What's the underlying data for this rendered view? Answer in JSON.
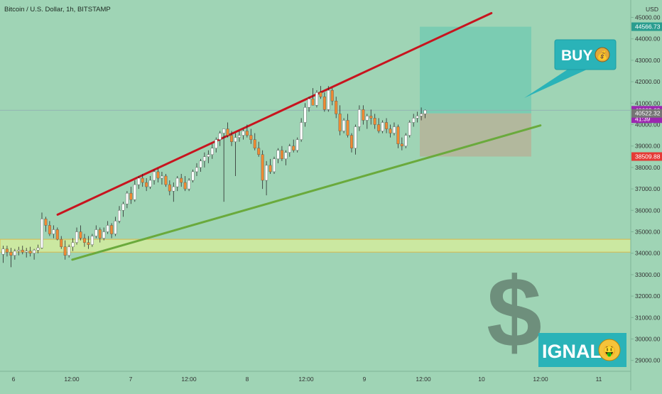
{
  "header": {
    "title": "Bitcoin / U.S. Dollar, 1h, BITSTAMP"
  },
  "colors": {
    "background": "#9fd4b5",
    "bull_candle": "#ffffff",
    "bear_candle": "#f08a32",
    "wick": "#2a2a2a",
    "resistance_line": "#c8141e",
    "support_line": "#6aaa3c",
    "support_zone": "#d3ec9e",
    "target_zone": "#6fcab2",
    "stop_zone": "#b4b59a",
    "buy_callout": "#2ab3b8",
    "dollar_sign": "#6e8f7c"
  },
  "price_axis": {
    "unit_label": "USD",
    "ticks": [
      "45000.00",
      "44000.00",
      "43000.00",
      "42000.00",
      "41000.00",
      "40000.00",
      "39000.00",
      "38000.00",
      "37000.00",
      "36000.00",
      "35000.00",
      "34000.00",
      "33000.00",
      "32000.00",
      "31000.00",
      "30000.00",
      "29000.00"
    ],
    "labels": [
      {
        "id": "target",
        "text": "44566.73",
        "color": "#2a9d8f"
      },
      {
        "id": "last",
        "text": "40669.69",
        "color": "#9c27b0"
      },
      {
        "id": "countdown",
        "text": "41:39",
        "color": "#9c27b0"
      },
      {
        "id": "entry",
        "text": "40522.32",
        "color": "#757575"
      },
      {
        "id": "stop",
        "text": "38509.88",
        "color": "#e53935"
      }
    ]
  },
  "time_axis": {
    "ticks": [
      "6",
      "12:00",
      "7",
      "12:00",
      "8",
      "12:00",
      "9",
      "12:00",
      "10",
      "12:00",
      "11"
    ]
  },
  "annotations": {
    "buy_label": "BUY",
    "buy_emoji": "💰",
    "dollar_sign": "$",
    "signal_text": "IGNAL",
    "signal_emoji": "🤑"
  },
  "chart_data": {
    "type": "candlestick",
    "symbol": "Bitcoin / U.S. Dollar",
    "timeframe": "1h",
    "exchange": "BITSTAMP",
    "ylim": [
      28400,
      45800
    ],
    "x_tick_labels": [
      "6",
      "12:00",
      "7",
      "12:00",
      "8",
      "12:00",
      "9",
      "12:00",
      "10",
      "12:00",
      "11"
    ],
    "candles_ohlc": [
      [
        33950,
        34350,
        33550,
        34200
      ],
      [
        34200,
        34350,
        33850,
        34050
      ],
      [
        34050,
        34250,
        33350,
        33900
      ],
      [
        33900,
        34200,
        33700,
        34100
      ],
      [
        34100,
        34300,
        33900,
        34150
      ],
      [
        34150,
        34350,
        33950,
        34050
      ],
      [
        34050,
        34250,
        33800,
        34100
      ],
      [
        34100,
        34300,
        33850,
        34000
      ],
      [
        34000,
        34200,
        33700,
        34150
      ],
      [
        34150,
        34400,
        34000,
        34250
      ],
      [
        34250,
        35900,
        34200,
        35600
      ],
      [
        35600,
        35700,
        35000,
        35300
      ],
      [
        35300,
        35500,
        34800,
        34900
      ],
      [
        34900,
        35300,
        34700,
        35100
      ],
      [
        35100,
        35200,
        34600,
        34650
      ],
      [
        34650,
        34800,
        34200,
        34300
      ],
      [
        34300,
        34600,
        33700,
        33900
      ],
      [
        33900,
        34400,
        33800,
        34300
      ],
      [
        34300,
        34700,
        34100,
        34500
      ],
      [
        34500,
        35200,
        34400,
        35000
      ],
      [
        35000,
        35300,
        34600,
        34700
      ],
      [
        34700,
        34900,
        34300,
        34500
      ],
      [
        34500,
        34800,
        34200,
        34400
      ],
      [
        34400,
        34900,
        34300,
        34800
      ],
      [
        34800,
        35300,
        34700,
        35100
      ],
      [
        35100,
        35200,
        34500,
        34700
      ],
      [
        34700,
        35200,
        34600,
        35000
      ],
      [
        35000,
        35500,
        34900,
        35300
      ],
      [
        35300,
        35400,
        34700,
        34900
      ],
      [
        34900,
        35700,
        34800,
        35500
      ],
      [
        35500,
        36200,
        35400,
        36000
      ],
      [
        36000,
        36400,
        35700,
        36300
      ],
      [
        36300,
        36900,
        36100,
        36800
      ],
      [
        36800,
        37100,
        36300,
        36500
      ],
      [
        36500,
        37400,
        36400,
        37200
      ],
      [
        37200,
        37600,
        37000,
        37500
      ],
      [
        37500,
        37700,
        37100,
        37300
      ],
      [
        37300,
        37500,
        36900,
        37100
      ],
      [
        37100,
        37600,
        37000,
        37400
      ],
      [
        37400,
        37900,
        37200,
        37800
      ],
      [
        37800,
        37950,
        37300,
        37500
      ],
      [
        37500,
        37800,
        37200,
        37600
      ],
      [
        37600,
        37700,
        37100,
        37200
      ],
      [
        37200,
        37400,
        36700,
        36900
      ],
      [
        36900,
        37300,
        36400,
        37100
      ],
      [
        37100,
        37600,
        36900,
        37500
      ],
      [
        37500,
        37700,
        37100,
        37300
      ],
      [
        37300,
        37600,
        36900,
        37000
      ],
      [
        37000,
        37500,
        36900,
        37400
      ],
      [
        37400,
        37900,
        37300,
        37800
      ],
      [
        37800,
        38200,
        37600,
        38000
      ],
      [
        38000,
        38400,
        37800,
        38300
      ],
      [
        38300,
        38700,
        38000,
        38500
      ],
      [
        38500,
        38800,
        38200,
        38600
      ],
      [
        38600,
        39100,
        38400,
        38900
      ],
      [
        38900,
        39400,
        38700,
        39300
      ],
      [
        39300,
        39700,
        39000,
        39600
      ],
      [
        39600,
        39700,
        36400,
        39800
      ],
      [
        39800,
        40100,
        39400,
        39500
      ],
      [
        39500,
        39700,
        39000,
        39200
      ],
      [
        39200,
        39600,
        37600,
        39400
      ],
      [
        39400,
        39700,
        39200,
        39500
      ],
      [
        39500,
        39800,
        39300,
        39700
      ],
      [
        39700,
        40000,
        39400,
        39500
      ],
      [
        39500,
        39800,
        39100,
        39300
      ],
      [
        39300,
        39600,
        38800,
        38900
      ],
      [
        38900,
        39200,
        38500,
        38600
      ],
      [
        38600,
        38800,
        37000,
        37400
      ],
      [
        37400,
        38300,
        36700,
        38100
      ],
      [
        38100,
        38400,
        37700,
        37800
      ],
      [
        37800,
        38500,
        37700,
        38400
      ],
      [
        38400,
        38900,
        38200,
        38800
      ],
      [
        38800,
        39000,
        38300,
        38400
      ],
      [
        38400,
        38800,
        38100,
        38700
      ],
      [
        38700,
        39100,
        38500,
        39000
      ],
      [
        39000,
        39300,
        38700,
        38800
      ],
      [
        38800,
        39400,
        38700,
        39300
      ],
      [
        39300,
        40300,
        39200,
        40100
      ],
      [
        40100,
        41000,
        39900,
        40800
      ],
      [
        40800,
        41300,
        40600,
        41200
      ],
      [
        41200,
        41700,
        40900,
        40900
      ],
      [
        40900,
        41600,
        40800,
        41500
      ],
      [
        41500,
        41800,
        41200,
        41300
      ],
      [
        41300,
        41500,
        40600,
        40700
      ],
      [
        40700,
        41800,
        40600,
        41600
      ],
      [
        41600,
        41700,
        40900,
        41100
      ],
      [
        41100,
        41300,
        40300,
        40500
      ],
      [
        40500,
        40900,
        39500,
        39700
      ],
      [
        39700,
        40300,
        39600,
        40200
      ],
      [
        40200,
        40500,
        39400,
        39500
      ],
      [
        39500,
        39600,
        38700,
        38900
      ],
      [
        38900,
        40000,
        38600,
        39900
      ],
      [
        39900,
        40900,
        39700,
        40700
      ],
      [
        40700,
        40900,
        40000,
        40200
      ],
      [
        40200,
        40500,
        39800,
        40400
      ],
      [
        40400,
        40700,
        40000,
        40300
      ],
      [
        40300,
        40500,
        39800,
        40000
      ],
      [
        40000,
        40300,
        39600,
        39700
      ],
      [
        39700,
        40200,
        39600,
        40100
      ],
      [
        40100,
        40300,
        39600,
        39800
      ],
      [
        39800,
        40000,
        39400,
        39600
      ],
      [
        39600,
        40100,
        39500,
        39900
      ],
      [
        39900,
        40000,
        38900,
        39100
      ],
      [
        39100,
        39400,
        38800,
        39000
      ],
      [
        39000,
        39600,
        38900,
        39500
      ],
      [
        39500,
        40200,
        39400,
        40100
      ],
      [
        40100,
        40500,
        39900,
        40300
      ],
      [
        40300,
        40600,
        40100,
        40400
      ],
      [
        40400,
        40800,
        40200,
        40500
      ],
      [
        40500,
        40700,
        40300,
        40670
      ]
    ],
    "trendlines": [
      {
        "name": "resistance",
        "from": [
          "6 09:00",
          35800
        ],
        "to": [
          "10 02:00",
          45200
        ]
      },
      {
        "name": "support",
        "from": [
          "6 12:00",
          33700
        ],
        "to": [
          "10 12:00",
          39960
        ]
      }
    ],
    "support_zone": [
      34050,
      34650
    ],
    "long_position": {
      "entry": 40522.32,
      "target": 44566.73,
      "stop": 38509.88
    },
    "last_price": 40669.69,
    "countdown": "41:39"
  }
}
